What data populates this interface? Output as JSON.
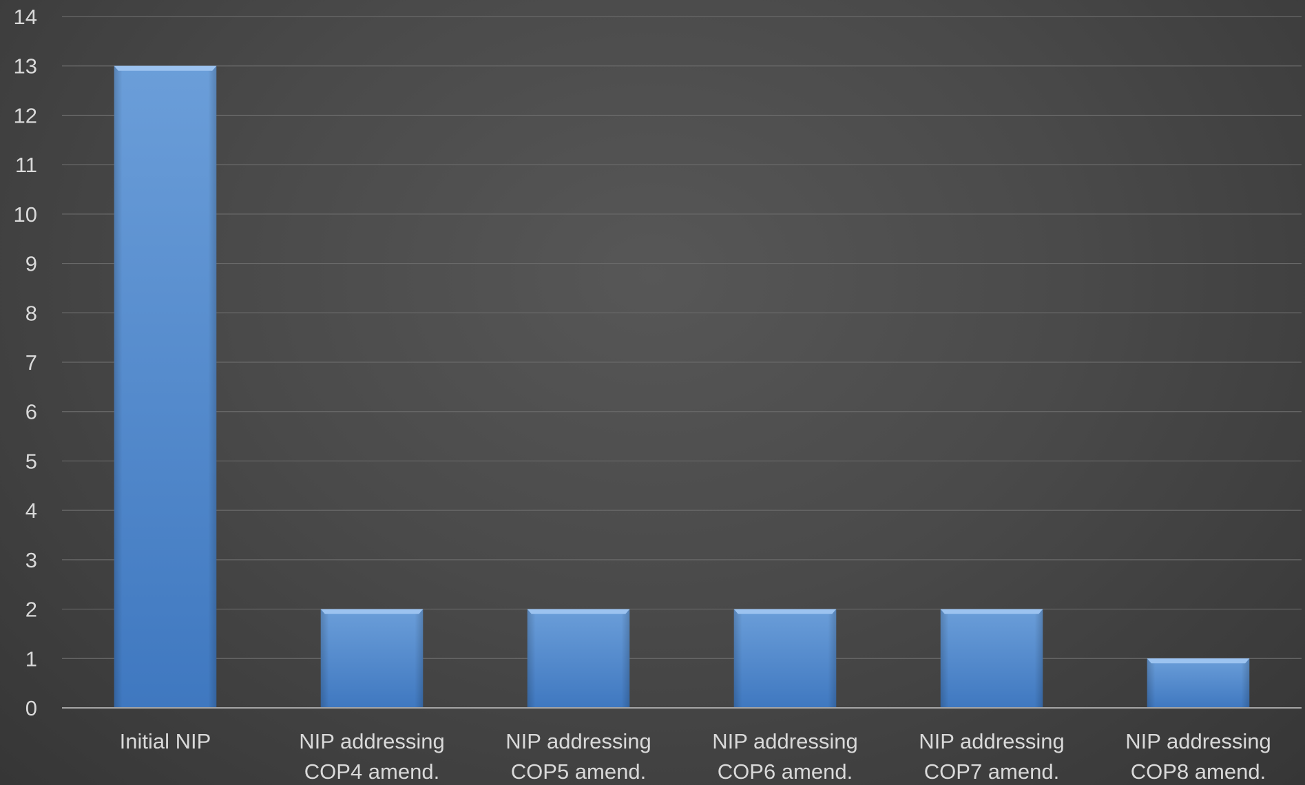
{
  "chart_data": {
    "type": "bar",
    "categories": [
      [
        "Initial NIP"
      ],
      [
        "NIP addressing",
        "COP4 amend."
      ],
      [
        "NIP addressing",
        "COP5 amend."
      ],
      [
        "NIP addressing",
        "COP6 amend."
      ],
      [
        "NIP addressing",
        "COP7 amend."
      ],
      [
        "NIP addressing",
        "COP8 amend."
      ]
    ],
    "values": [
      13,
      2,
      2,
      2,
      2,
      1
    ],
    "title": "",
    "xlabel": "",
    "ylabel": "",
    "ylim": [
      0,
      14
    ],
    "yticks": [
      "0",
      "1",
      "2",
      "3",
      "4",
      "5",
      "6",
      "7",
      "8",
      "9",
      "10",
      "11",
      "12",
      "13",
      "14"
    ],
    "grid": true,
    "legend": "none",
    "colors": {
      "bar": "#4a86cf",
      "bar_top": "#9cc3f0",
      "background": "#4a4a4a",
      "text": "#d9d9d9",
      "grid": "#6a6a6a",
      "axis": "#a6a6a6"
    }
  }
}
